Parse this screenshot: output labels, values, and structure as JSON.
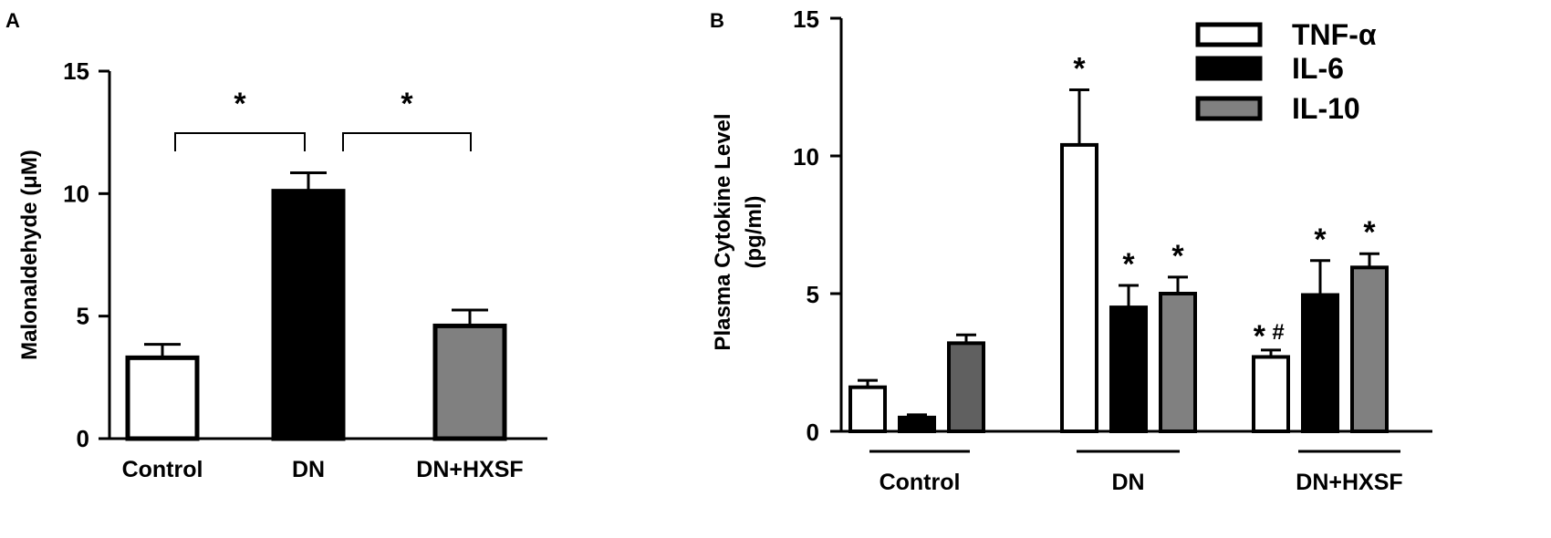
{
  "chart_data": [
    {
      "panel": "A",
      "type": "bar",
      "ylabel": "Malonaldehyde  (μM)",
      "ylim": [
        0,
        15
      ],
      "yticks": [
        0,
        5,
        10,
        15
      ],
      "categories": [
        "Control",
        "DN",
        "DN+HXSF"
      ],
      "values": [
        3.3,
        10.1,
        4.6
      ],
      "errors": [
        0.55,
        0.75,
        0.65
      ],
      "fill_colors": [
        "#ffffff",
        "#000000",
        "#808080"
      ],
      "significance": [
        {
          "from": 0,
          "to": 1,
          "label": "*"
        },
        {
          "from": 1,
          "to": 2,
          "label": "*"
        }
      ]
    },
    {
      "panel": "B",
      "type": "bar",
      "ylabel_lines": [
        "Plasma Cytokine Level",
        "(pg/ml)"
      ],
      "ylim": [
        0,
        15
      ],
      "yticks": [
        0,
        5,
        10,
        15
      ],
      "categories": [
        "Control",
        "DN",
        "DN+HXSF"
      ],
      "legend_position": "top-right",
      "series": [
        {
          "name": "TNF-α",
          "color": "#ffffff",
          "values": [
            1.6,
            10.4,
            2.7
          ],
          "errors": [
            0.25,
            2.0,
            0.25
          ],
          "marks": [
            "",
            "*",
            "* #"
          ]
        },
        {
          "name": "IL-6",
          "color": "#000000",
          "values": [
            0.5,
            4.5,
            4.95
          ],
          "errors": [
            0.1,
            0.8,
            1.25
          ],
          "marks": [
            "",
            "*",
            "*"
          ]
        },
        {
          "name": "IL-10",
          "color": "#808080",
          "bar_colors": [
            "#606060",
            "#808080",
            "#808080"
          ],
          "values": [
            3.2,
            5.0,
            5.95
          ],
          "errors": [
            0.3,
            0.6,
            0.5
          ],
          "marks": [
            "",
            "*",
            "*"
          ]
        }
      ]
    }
  ]
}
